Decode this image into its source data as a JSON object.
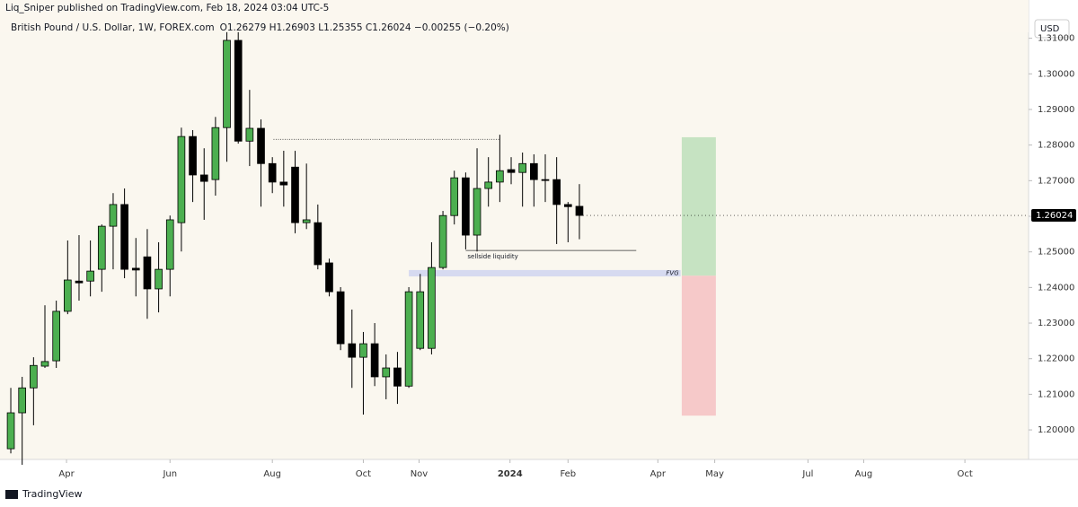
{
  "chart_data": {
    "type": "candlestick",
    "byline": "Liq_Sniper published on TradingView.com, Feb 18, 2024 03:04 UTC-5",
    "title": "British Pound / U.S. Dollar, 1W, FOREX.com",
    "ohlc_legend": "O1.26279 H1.26903 L1.25355 C1.26024 −0.00255 (−0.20%)",
    "currency": "USD",
    "brand": "TradingView",
    "categories": [
      null,
      null,
      null,
      null,
      null,
      null,
      null,
      null,
      null,
      null,
      null,
      null,
      null,
      null,
      null,
      null,
      null,
      null,
      null,
      null,
      null,
      null,
      null,
      null,
      null,
      null,
      null,
      null,
      null,
      null,
      null,
      null,
      null,
      null,
      null,
      null,
      null,
      null,
      null,
      null,
      null,
      null,
      null,
      null,
      null,
      null,
      null,
      null,
      null,
      null,
      null
    ],
    "series": [
      {
        "up_color": "#4caf50",
        "down_color": "#000000",
        "open": [
          1.1947,
          1.2048,
          1.2118,
          1.2179,
          1.2194,
          1.2333,
          1.2418,
          1.2418,
          1.2451,
          1.2572,
          1.2633,
          1.2454,
          1.2486,
          1.2396,
          1.2451,
          1.2582,
          1.2824,
          1.2716,
          1.2703,
          1.2849,
          1.3094,
          1.2811,
          1.2847,
          1.2748,
          1.2696,
          1.2738,
          1.2582,
          1.2582,
          1.2469,
          1.2388,
          1.2242,
          1.2204,
          1.2242,
          1.2149,
          1.2174,
          1.2123,
          1.2229,
          1.2229,
          1.2456,
          1.2602,
          1.2708,
          1.2547,
          1.2678,
          1.2696,
          1.2731,
          1.2723,
          1.2748,
          1.2703,
          1.2703,
          1.2633,
          1.26279
        ],
        "high": [
          1.2118,
          1.2149,
          1.2204,
          1.235,
          1.2363,
          1.2532,
          1.2547,
          1.2532,
          1.2577,
          1.2665,
          1.2678,
          1.2539,
          1.2564,
          1.2527,
          1.2602,
          1.2849,
          1.2842,
          1.2791,
          1.2879,
          1.3119,
          1.3119,
          1.2955,
          1.2872,
          1.2766,
          1.2784,
          1.2784,
          1.2748,
          1.2633,
          1.2481,
          1.2401,
          1.2338,
          1.2275,
          1.23,
          1.2212,
          1.2219,
          1.2401,
          1.2438,
          1.2527,
          1.2615,
          1.2728,
          1.2723,
          1.2791,
          1.2766,
          1.2829,
          1.2766,
          1.2779,
          1.2774,
          1.2774,
          1.2766,
          1.264,
          1.26903
        ],
        "low": [
          1.1934,
          1.1902,
          1.2013,
          1.2174,
          1.2174,
          1.2325,
          1.2363,
          1.2375,
          1.2388,
          1.2451,
          1.2426,
          1.2375,
          1.2312,
          1.233,
          1.2375,
          1.2501,
          1.264,
          1.259,
          1.2658,
          1.2753,
          1.2804,
          1.2741,
          1.2627,
          1.2665,
          1.2627,
          1.2552,
          1.2564,
          1.2451,
          1.2375,
          1.2224,
          1.2118,
          1.2043,
          1.2123,
          1.2086,
          1.2073,
          1.2118,
          1.2224,
          1.2212,
          1.2451,
          1.2577,
          1.2507,
          1.2501,
          1.2627,
          1.264,
          1.269,
          1.2627,
          1.2627,
          1.264,
          1.2522,
          1.2527,
          1.25355
        ],
        "close": [
          1.2048,
          1.2118,
          1.2181,
          1.2192,
          1.2333,
          1.2421,
          1.2413,
          1.2446,
          1.2572,
          1.2633,
          1.2451,
          1.2449,
          1.2396,
          1.2451,
          1.259,
          1.2824,
          1.2716,
          1.2698,
          1.2849,
          1.3094,
          1.2811,
          1.2847,
          1.2748,
          1.2696,
          1.2688,
          1.2582,
          1.259,
          1.2464,
          1.2388,
          1.2242,
          1.2204,
          1.2242,
          1.2149,
          1.2174,
          1.2123,
          1.2388,
          1.2388,
          1.2456,
          1.2602,
          1.2708,
          1.2547,
          1.2678,
          1.2696,
          1.2728,
          1.2723,
          1.2748,
          1.2703,
          1.2701,
          1.2633,
          1.2627,
          1.26024
        ]
      }
    ],
    "last_price": 1.26024,
    "xlim": [
      -0.95,
      89.5
    ],
    "xticks": [
      {
        "value": 4.9,
        "label": "Apr"
      },
      {
        "value": 14.0,
        "label": "Jun"
      },
      {
        "value": 23.0,
        "label": "Aug"
      },
      {
        "value": 31.0,
        "label": "Oct"
      },
      {
        "value": 35.9,
        "label": "Nov"
      },
      {
        "value": 43.9,
        "label": "2024"
      },
      {
        "value": 49.0,
        "label": "Feb"
      },
      {
        "value": 56.9,
        "label": "Apr"
      },
      {
        "value": 61.9,
        "label": "May"
      },
      {
        "value": 70.1,
        "label": "Jul"
      },
      {
        "value": 75.0,
        "label": "Aug"
      },
      {
        "value": 83.9,
        "label": "Oct"
      }
    ],
    "ylim": [
      1.1917,
      1.3157
    ],
    "yticks": [
      {
        "value": 1.2,
        "label": "1.20000"
      },
      {
        "value": 1.21,
        "label": "1.21000"
      },
      {
        "value": 1.22,
        "label": "1.22000"
      },
      {
        "value": 1.23,
        "label": "1.23000"
      },
      {
        "value": 1.24,
        "label": "1.24000"
      },
      {
        "value": 1.25,
        "label": "1.25000"
      },
      {
        "value": 1.26,
        "label": "1.26000"
      },
      {
        "value": 1.27,
        "label": "1.27000"
      },
      {
        "value": 1.28,
        "label": "1.28000"
      },
      {
        "value": 1.29,
        "label": "1.29000"
      },
      {
        "value": 1.3,
        "label": "1.30000"
      },
      {
        "value": 1.31,
        "label": "1.31000"
      }
    ],
    "drawings": {
      "high_level": {
        "price": 1.2816,
        "x": [
          23.1,
          43.0
        ]
      },
      "sellside": {
        "price": 1.2504,
        "x": [
          40.0,
          55.0
        ],
        "label": "sellside liquidity"
      },
      "fvg": {
        "top": 1.2449,
        "bottom": 1.2431,
        "x": [
          35.0,
          58.9
        ],
        "label": "FVG"
      },
      "position": {
        "target": 1.2822,
        "entry": 1.2433,
        "stop": 1.204,
        "x": [
          59.0,
          62.0
        ]
      }
    }
  }
}
